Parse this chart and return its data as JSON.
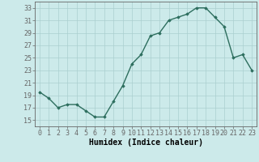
{
  "x": [
    0,
    1,
    2,
    3,
    4,
    5,
    6,
    7,
    8,
    9,
    10,
    11,
    12,
    13,
    14,
    15,
    16,
    17,
    18,
    19,
    20,
    21,
    22,
    23
  ],
  "y": [
    19.5,
    18.5,
    17.0,
    17.5,
    17.5,
    16.5,
    15.5,
    15.5,
    18.0,
    20.5,
    24.0,
    25.5,
    28.5,
    29.0,
    31.0,
    31.5,
    32.0,
    33.0,
    33.0,
    31.5,
    30.0,
    25.0,
    25.5,
    23.0
  ],
  "xlabel": "Humidex (Indice chaleur)",
  "ylim": [
    14,
    34
  ],
  "xlim": [
    -0.5,
    23.5
  ],
  "yticks": [
    15,
    17,
    19,
    21,
    23,
    25,
    27,
    29,
    31,
    33
  ],
  "xticks": [
    0,
    1,
    2,
    3,
    4,
    5,
    6,
    7,
    8,
    9,
    10,
    11,
    12,
    13,
    14,
    15,
    16,
    17,
    18,
    19,
    20,
    21,
    22,
    23
  ],
  "line_color": "#2d6e5e",
  "marker": "D",
  "marker_size": 1.8,
  "bg_color": "#cceaea",
  "grid_color": "#aacfcf",
  "axis_color": "#666666",
  "xlabel_fontsize": 7,
  "tick_fontsize": 6,
  "line_width": 1.0
}
